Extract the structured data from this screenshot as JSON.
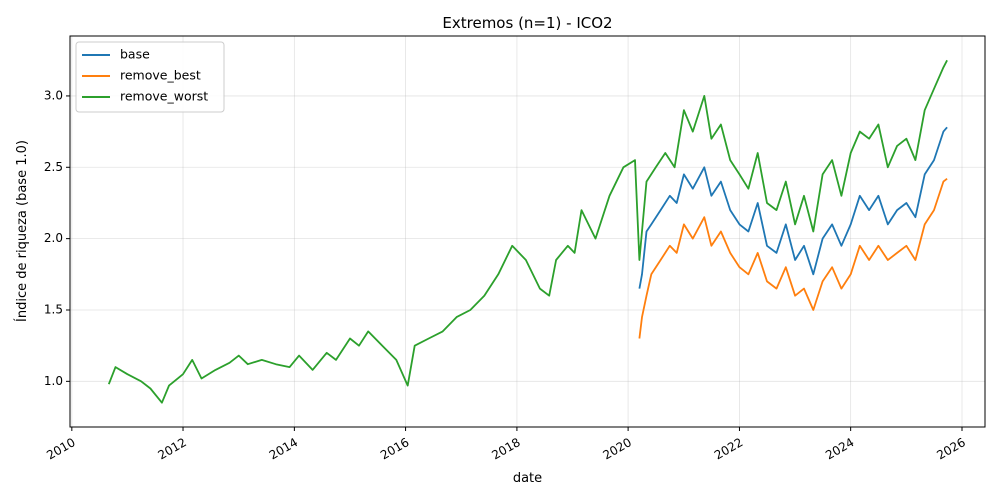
{
  "chart_data": {
    "type": "line",
    "title": "Extremos (n=1) - ICO2",
    "xlabel": "date",
    "ylabel": "Índice de riqueza (base 1.0)",
    "xlim": [
      "2009-12-20",
      "2026-06-01"
    ],
    "ylim": [
      0.68,
      3.42
    ],
    "x_ticks": [
      "2010",
      "2012",
      "2014",
      "2016",
      "2018",
      "2020",
      "2022",
      "2024",
      "2026"
    ],
    "y_ticks": [
      "1.0",
      "1.5",
      "2.0",
      "2.5",
      "3.0"
    ],
    "grid": true,
    "legend_position": "top-left",
    "series": [
      {
        "name": "base",
        "color": "#1f77b4",
        "x": [
          "2020-03-15",
          "2020-04-01",
          "2020-05-01",
          "2020-06-01",
          "2020-08-01",
          "2020-10-01",
          "2020-11-15",
          "2021-01-01",
          "2021-03-01",
          "2021-05-15",
          "2021-07-01",
          "2021-09-01",
          "2021-11-01",
          "2022-01-01",
          "2022-03-01",
          "2022-05-01",
          "2022-07-01",
          "2022-09-01",
          "2022-11-01",
          "2023-01-01",
          "2023-03-01",
          "2023-05-01",
          "2023-07-01",
          "2023-09-01",
          "2023-11-01",
          "2024-01-01",
          "2024-03-01",
          "2024-05-01",
          "2024-07-01",
          "2024-09-01",
          "2024-11-01",
          "2025-01-01",
          "2025-03-01",
          "2025-05-01",
          "2025-07-01",
          "2025-09-01",
          "2025-09-25"
        ],
        "y": [
          1.65,
          1.75,
          2.05,
          2.1,
          2.2,
          2.3,
          2.25,
          2.45,
          2.35,
          2.5,
          2.3,
          2.4,
          2.2,
          2.1,
          2.05,
          2.25,
          1.95,
          1.9,
          2.1,
          1.85,
          1.95,
          1.75,
          2.0,
          2.1,
          1.95,
          2.1,
          2.3,
          2.2,
          2.3,
          2.1,
          2.2,
          2.25,
          2.15,
          2.45,
          2.55,
          2.75,
          2.78
        ]
      },
      {
        "name": "remove_best",
        "color": "#ff7f0e",
        "x": [
          "2020-03-15",
          "2020-04-01",
          "2020-05-01",
          "2020-06-01",
          "2020-08-01",
          "2020-10-01",
          "2020-11-15",
          "2021-01-01",
          "2021-03-01",
          "2021-05-15",
          "2021-07-01",
          "2021-09-01",
          "2021-11-01",
          "2022-01-01",
          "2022-03-01",
          "2022-05-01",
          "2022-07-01",
          "2022-09-01",
          "2022-11-01",
          "2023-01-01",
          "2023-03-01",
          "2023-05-01",
          "2023-07-01",
          "2023-09-01",
          "2023-11-01",
          "2024-01-01",
          "2024-03-01",
          "2024-05-01",
          "2024-07-01",
          "2024-09-01",
          "2024-11-01",
          "2025-01-01",
          "2025-03-01",
          "2025-05-01",
          "2025-07-01",
          "2025-09-01",
          "2025-09-25"
        ],
        "y": [
          1.3,
          1.45,
          1.6,
          1.75,
          1.85,
          1.95,
          1.9,
          2.1,
          2.0,
          2.15,
          1.95,
          2.05,
          1.9,
          1.8,
          1.75,
          1.9,
          1.7,
          1.65,
          1.8,
          1.6,
          1.65,
          1.5,
          1.7,
          1.8,
          1.65,
          1.75,
          1.95,
          1.85,
          1.95,
          1.85,
          1.9,
          1.95,
          1.85,
          2.1,
          2.2,
          2.4,
          2.42
        ]
      },
      {
        "name": "remove_worst",
        "color": "#2ca02c",
        "x": [
          "2010-09-01",
          "2010-10-15",
          "2011-01-01",
          "2011-04-01",
          "2011-06-01",
          "2011-08-15",
          "2011-10-01",
          "2012-01-01",
          "2012-03-01",
          "2012-05-01",
          "2012-08-01",
          "2012-11-01",
          "2013-01-01",
          "2013-03-01",
          "2013-06-01",
          "2013-09-01",
          "2013-12-01",
          "2014-02-01",
          "2014-05-01",
          "2014-08-01",
          "2014-10-01",
          "2015-01-01",
          "2015-03-01",
          "2015-05-01",
          "2015-08-01",
          "2015-11-01",
          "2016-01-15",
          "2016-03-01",
          "2016-06-01",
          "2016-09-01",
          "2016-12-01",
          "2017-03-01",
          "2017-06-01",
          "2017-09-01",
          "2017-12-01",
          "2018-03-01",
          "2018-06-01",
          "2018-08-01",
          "2018-09-15",
          "2018-12-01",
          "2019-01-15",
          "2019-03-01",
          "2019-06-01",
          "2019-09-01",
          "2019-12-01",
          "2020-02-15",
          "2020-03-15",
          "2020-05-01",
          "2020-07-01",
          "2020-09-01",
          "2020-11-01",
          "2021-01-01",
          "2021-03-01",
          "2021-05-15",
          "2021-07-01",
          "2021-09-01",
          "2021-11-01",
          "2022-01-01",
          "2022-03-01",
          "2022-05-01",
          "2022-07-01",
          "2022-09-01",
          "2022-11-01",
          "2023-01-01",
          "2023-03-01",
          "2023-05-01",
          "2023-07-01",
          "2023-09-01",
          "2023-11-01",
          "2024-01-01",
          "2024-03-01",
          "2024-05-01",
          "2024-07-01",
          "2024-09-01",
          "2024-11-01",
          "2025-01-01",
          "2025-03-01",
          "2025-05-01",
          "2025-07-01",
          "2025-09-01",
          "2025-09-25"
        ],
        "y": [
          0.98,
          1.1,
          1.05,
          1.0,
          0.95,
          0.85,
          0.97,
          1.05,
          1.15,
          1.02,
          1.08,
          1.13,
          1.18,
          1.12,
          1.15,
          1.12,
          1.1,
          1.18,
          1.08,
          1.2,
          1.15,
          1.3,
          1.25,
          1.35,
          1.25,
          1.15,
          0.97,
          1.25,
          1.3,
          1.35,
          1.45,
          1.5,
          1.6,
          1.75,
          1.95,
          1.85,
          1.65,
          1.6,
          1.85,
          1.95,
          1.9,
          2.2,
          2.0,
          2.3,
          2.5,
          2.55,
          1.85,
          2.4,
          2.5,
          2.6,
          2.5,
          2.9,
          2.75,
          3.0,
          2.7,
          2.8,
          2.55,
          2.45,
          2.35,
          2.6,
          2.25,
          2.2,
          2.4,
          2.1,
          2.3,
          2.05,
          2.45,
          2.55,
          2.3,
          2.6,
          2.75,
          2.7,
          2.8,
          2.5,
          2.65,
          2.7,
          2.55,
          2.9,
          3.05,
          3.2,
          3.25
        ]
      }
    ]
  }
}
